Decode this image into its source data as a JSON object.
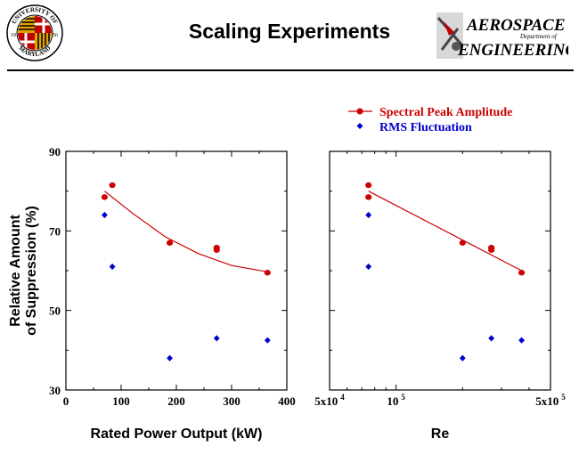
{
  "header": {
    "title": "Scaling Experiments",
    "seal_text_top": "UNIVERSITY OF",
    "seal_text_bottom": "MARYLAND",
    "seal_year_left": "18",
    "seal_year_right": "56",
    "dept_line1": "AEROSPACE",
    "dept_line2": "ENGINEERING",
    "dept_small": "Department of"
  },
  "colors": {
    "spectral": "#cc0000",
    "rms": "#0000cc",
    "axis": "#000000"
  },
  "chart_data": [
    {
      "type": "scatter",
      "xlabel": "Rated Power Output (kW)",
      "ylabel": "Relative Amount of Suppression (%)",
      "ylabel_lines": [
        "Relative Amount",
        "of Suppression (%)"
      ],
      "xlim": [
        0,
        400
      ],
      "ylim": [
        30,
        90
      ],
      "xticks": [
        0,
        100,
        200,
        300,
        400
      ],
      "yticks": [
        30,
        50,
        70,
        90
      ],
      "series": [
        {
          "name": "Spectral Peak Amplitude",
          "marker": "circle",
          "color": "#cc0000",
          "points": [
            [
              70,
              78.5
            ],
            [
              84,
              81.5
            ],
            [
              188,
              67
            ],
            [
              273,
              65.2
            ],
            [
              273,
              65.8
            ],
            [
              365,
              59.5
            ]
          ],
          "fit": [
            [
              70,
              80
            ],
            [
              120,
              74.5
            ],
            [
              180,
              68.5
            ],
            [
              240,
              64.3
            ],
            [
              300,
              61.3
            ],
            [
              365,
              59.7
            ]
          ]
        },
        {
          "name": "RMS Fluctuation",
          "marker": "diamond",
          "color": "#0000cc",
          "points": [
            [
              70,
              74
            ],
            [
              84,
              61
            ],
            [
              188,
              38
            ],
            [
              273,
              43
            ],
            [
              365,
              42.5
            ]
          ]
        }
      ]
    },
    {
      "type": "scatter",
      "xlabel": "Re",
      "ylim": [
        30,
        90
      ],
      "xscale": "log",
      "xlim": [
        50000,
        500000
      ],
      "xtick_labels": [
        "5x10 4",
        "10 5",
        "5x10 5"
      ],
      "xtick_values": [
        50000,
        100000,
        500000
      ],
      "series": [
        {
          "name": "Spectral Peak Amplitude",
          "marker": "circle",
          "color": "#cc0000",
          "points": [
            [
              75000,
              78.5
            ],
            [
              75000,
              81.5
            ],
            [
              200000,
              67
            ],
            [
              270000,
              65.2
            ],
            [
              270000,
              65.8
            ],
            [
              370000,
              59.5
            ]
          ],
          "fit": [
            [
              75000,
              80
            ],
            [
              370000,
              60
            ]
          ]
        },
        {
          "name": "RMS Fluctuation",
          "marker": "diamond",
          "color": "#0000cc",
          "points": [
            [
              75000,
              74
            ],
            [
              75000,
              61
            ],
            [
              200000,
              38
            ],
            [
              270000,
              43
            ],
            [
              370000,
              42.5
            ]
          ]
        }
      ]
    }
  ],
  "legend": {
    "items": [
      {
        "label": "Spectral Peak Amplitude",
        "marker": "circle-line",
        "color": "#cc0000"
      },
      {
        "label": "RMS Fluctuation",
        "marker": "diamond",
        "color": "#0000cc"
      }
    ]
  }
}
